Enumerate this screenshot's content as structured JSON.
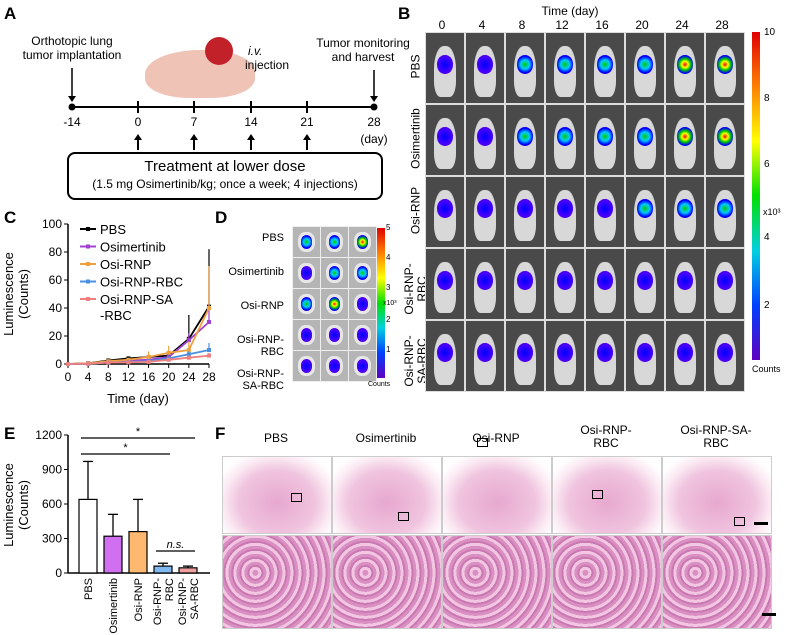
{
  "panels": {
    "A": "A",
    "B": "B",
    "C": "C",
    "D": "D",
    "E": "E",
    "F": "F"
  },
  "panel_a": {
    "implant": "Orthotopic lung\ntumor implantation",
    "iv": "i.v.",
    "injection": "injection",
    "harvest": "Tumor monitoring\nand harvest",
    "ticks": [
      "-14",
      "0",
      "7",
      "14",
      "21",
      "28"
    ],
    "day_unit": "(day)",
    "treatment_title": "Treatment at lower dose",
    "treatment_detail": "(1.5 mg Osimertinib/kg; once a week; 4 injections)"
  },
  "panel_b": {
    "header": "Time (day)",
    "days": [
      "0",
      "4",
      "8",
      "12",
      "16",
      "20",
      "24",
      "28"
    ],
    "groups": [
      "PBS",
      "Osimertinib",
      "Osi-RNP",
      "Osi-RNP-\nRBC",
      "Osi-RNP-\nSA-RBC"
    ],
    "colorbar_ticks": [
      "10",
      "8",
      "6",
      "4",
      "2"
    ],
    "colorbar_unit": "x10³",
    "colorbar_label": "Counts"
  },
  "panel_d": {
    "groups": [
      "PBS",
      "Osimertinib",
      "Osi-RNP",
      "Osi-RNP-\nRBC",
      "Osi-RNP-\nSA-RBC"
    ],
    "colorbar_ticks": [
      "5",
      "4",
      "3",
      "2",
      "1"
    ],
    "colorbar_unit": "x10³",
    "colorbar_label": "Counts"
  },
  "panel_f": {
    "groups": [
      "PBS",
      "Osimertinib",
      "Osi-RNP",
      "Osi-RNP-\nRBC",
      "Osi-RNP-SA-\nRBC"
    ]
  },
  "chart_data": [
    {
      "type": "line",
      "xlabel": "Time (day)",
      "ylabel": "Luminescence\n(Counts)",
      "x": [
        0,
        4,
        8,
        12,
        16,
        20,
        24,
        28
      ],
      "xticks": [
        "0",
        "4",
        "8",
        "12",
        "16",
        "20",
        "24",
        "28"
      ],
      "yticks": [
        "0",
        "20",
        "40",
        "60",
        "80",
        "100"
      ],
      "ylim": [
        0,
        100
      ],
      "legend": "top-left",
      "series": [
        {
          "name": "PBS",
          "color": "#000000",
          "values": [
            0,
            0.5,
            2.5,
            4,
            5,
            6,
            18,
            41
          ],
          "errors": [
            0,
            0.3,
            0.8,
            1,
            1.5,
            2,
            17,
            41
          ]
        },
        {
          "name": "Osimertinib",
          "color": "#a040d0",
          "values": [
            0,
            0.3,
            1.5,
            2.5,
            3,
            5,
            17,
            30
          ],
          "errors": [
            0,
            0.2,
            0.6,
            1,
            1.5,
            2,
            5,
            12
          ]
        },
        {
          "name": "Osi-RNP",
          "color": "#f0a040",
          "values": [
            0,
            0.5,
            2,
            3,
            5,
            8,
            10,
            40
          ],
          "errors": [
            0,
            0.3,
            0.8,
            1,
            4,
            5,
            6,
            30
          ]
        },
        {
          "name": "Osi-RNP-RBC",
          "color": "#4a90e0",
          "values": [
            0,
            0.2,
            1,
            1.5,
            2,
            4,
            7,
            10
          ],
          "errors": [
            0,
            0.1,
            0.4,
            0.6,
            1,
            1.5,
            2,
            5
          ]
        },
        {
          "name": "Osi-RNP-SA\n-RBC",
          "color": "#f08080",
          "values": [
            0,
            0.2,
            1,
            1.2,
            1.5,
            3,
            4.5,
            6
          ],
          "errors": [
            0,
            0.1,
            0.3,
            0.5,
            0.6,
            1,
            1.5,
            2
          ]
        }
      ]
    },
    {
      "type": "bar",
      "ylabel": "Luminescence\n(Counts)",
      "categories": [
        "PBS",
        "Osimertinib",
        "Osi-RNP",
        "Osi-RNP-\nRBC",
        "Osi-RNP-\nSA-RBC"
      ],
      "values": [
        640,
        320,
        360,
        60,
        45
      ],
      "errors": [
        330,
        190,
        280,
        25,
        15
      ],
      "colors": [
        "#ffffff",
        "#d070f0",
        "#ffb870",
        "#80b8f0",
        "#f0a0a0"
      ],
      "yticks": [
        "0",
        "300",
        "600",
        "900",
        "1200"
      ],
      "ylim": [
        0,
        1200
      ],
      "annotations": [
        {
          "from": 0,
          "to": 4,
          "label": "*"
        },
        {
          "from": 0,
          "to": 3,
          "label": "*"
        },
        {
          "from": 3,
          "to": 4,
          "label": "n.s."
        }
      ]
    }
  ]
}
